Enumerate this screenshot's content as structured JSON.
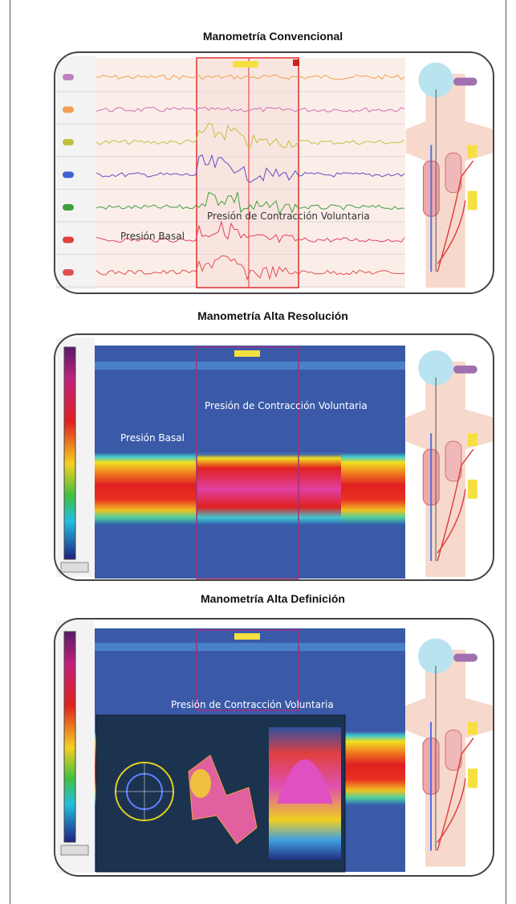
{
  "panels": [
    {
      "title": "Manometría Convencional",
      "labels": [
        "Presión de Contracción Voluntaria",
        "Presión Basal"
      ]
    },
    {
      "title": "Manometría Alta Resolución",
      "labels": [
        "Presión de Contracción Voluntaria",
        "Presión Basal"
      ]
    },
    {
      "title": "Manometría Alta Definición",
      "labels": [
        "Presión de Contracción Voluntaria"
      ]
    }
  ]
}
